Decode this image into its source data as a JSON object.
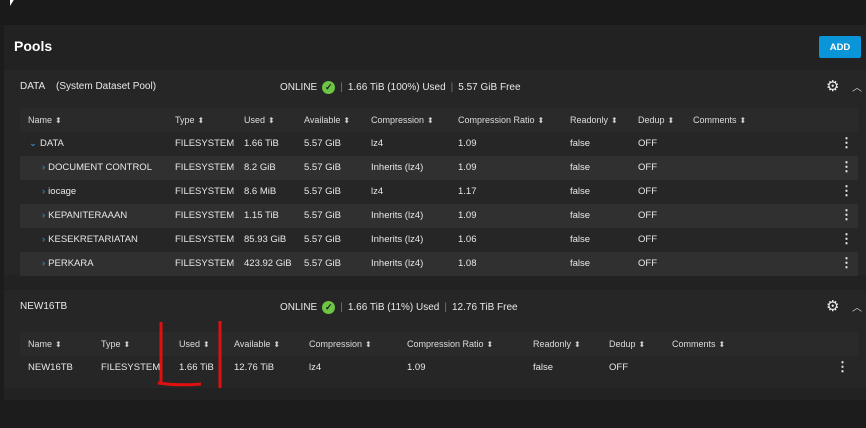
{
  "page": {
    "title": "Pools",
    "add_label": "ADD"
  },
  "pools": [
    {
      "name": "DATA",
      "subtitle": "(System Dataset Pool)",
      "status": "ONLINE",
      "used": "1.66 TiB (100%) Used",
      "free": "5.57 GiB Free",
      "columns": [
        "Name",
        "Type",
        "Used",
        "Available",
        "Compression",
        "Compression Ratio",
        "Readonly",
        "Dedup",
        "Comments"
      ],
      "rows": [
        {
          "name": "DATA",
          "expand": "down",
          "type": "FILESYSTEM",
          "used": "1.66 TiB",
          "available": "5.57 GiB",
          "compression": "lz4",
          "ratio": "1.09",
          "readonly": "false",
          "dedup": "OFF",
          "comments": ""
        },
        {
          "name": "DOCUMENT CONTROL",
          "expand": "right",
          "type": "FILESYSTEM",
          "used": "8.2 GiB",
          "available": "5.57 GiB",
          "compression": "Inherits (lz4)",
          "ratio": "1.09",
          "readonly": "false",
          "dedup": "OFF",
          "comments": ""
        },
        {
          "name": "iocage",
          "expand": "right",
          "type": "FILESYSTEM",
          "used": "8.6 MiB",
          "available": "5.57 GiB",
          "compression": "lz4",
          "ratio": "1.17",
          "readonly": "false",
          "dedup": "OFF",
          "comments": ""
        },
        {
          "name": "KEPANITERAAAN",
          "expand": "right",
          "type": "FILESYSTEM",
          "used": "1.15 TiB",
          "available": "5.57 GiB",
          "compression": "Inherits (lz4)",
          "ratio": "1.09",
          "readonly": "false",
          "dedup": "OFF",
          "comments": ""
        },
        {
          "name": "KESEKRETARIATAN",
          "expand": "right",
          "type": "FILESYSTEM",
          "used": "85.93 GiB",
          "available": "5.57 GiB",
          "compression": "Inherits (lz4)",
          "ratio": "1.06",
          "readonly": "false",
          "dedup": "OFF",
          "comments": ""
        },
        {
          "name": "PERKARA",
          "expand": "right",
          "type": "FILESYSTEM",
          "used": "423.92 GiB",
          "available": "5.57 GiB",
          "compression": "Inherits (lz4)",
          "ratio": "1.08",
          "readonly": "false",
          "dedup": "OFF",
          "comments": ""
        }
      ]
    },
    {
      "name": "NEW16TB",
      "subtitle": "",
      "status": "ONLINE",
      "used": "1.66 TiB (11%) Used",
      "free": "12.76 TiB Free",
      "columns": [
        "Name",
        "Type",
        "Used",
        "Available",
        "Compression",
        "Compression Ratio",
        "Readonly",
        "Dedup",
        "Comments"
      ],
      "rows": [
        {
          "name": "NEW16TB",
          "expand": "",
          "type": "FILESYSTEM",
          "used": "1.66 TiB",
          "available": "12.76 TiB",
          "compression": "lz4",
          "ratio": "1.09",
          "readonly": "false",
          "dedup": "OFF",
          "comments": ""
        }
      ]
    }
  ],
  "colors": {
    "accent": "#0a95d8",
    "online": "#6cc644",
    "annotation": "#e01010"
  }
}
